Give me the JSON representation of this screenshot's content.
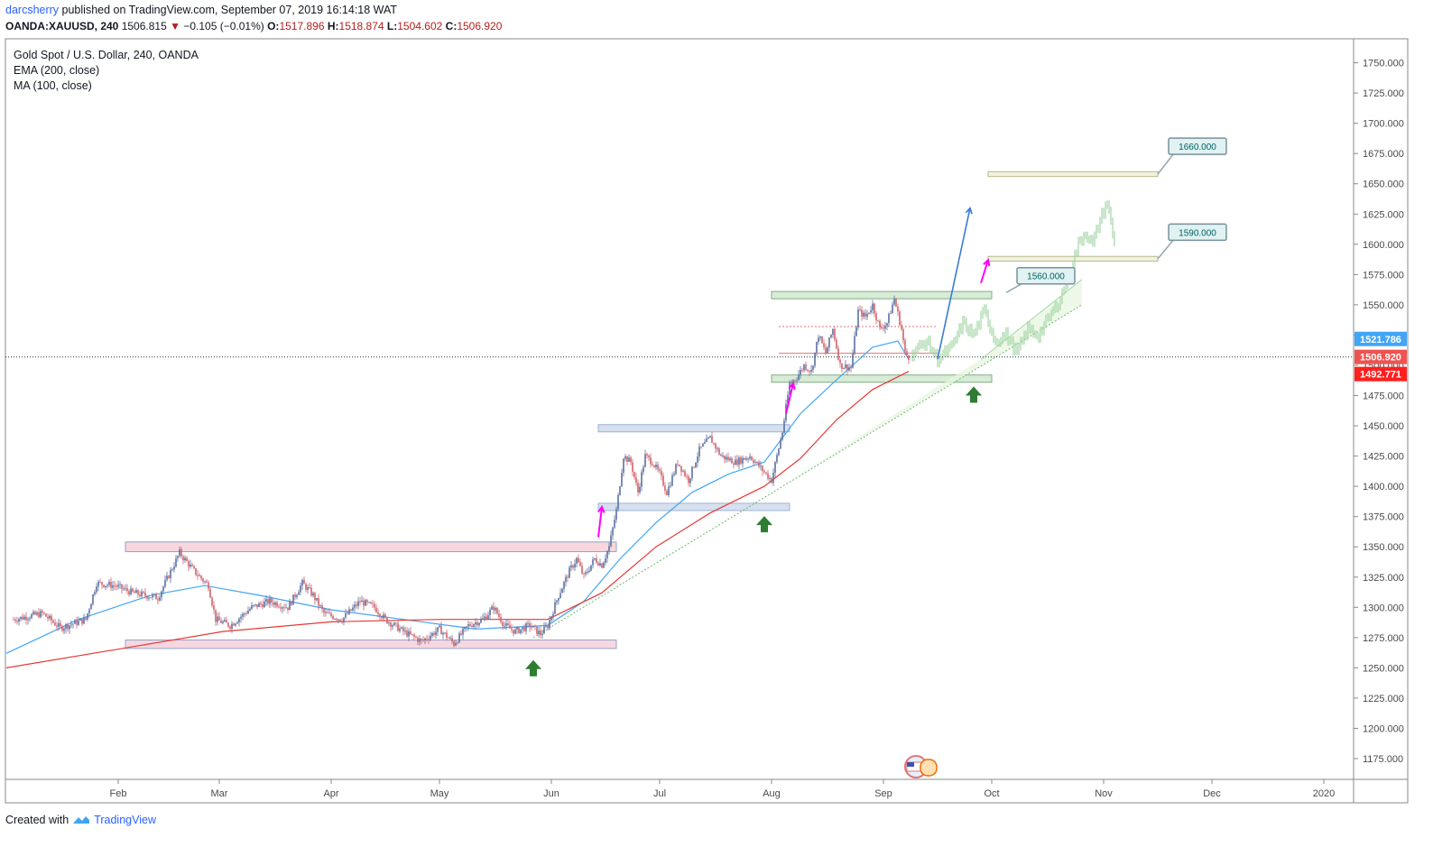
{
  "header": {
    "author": "darcsherry",
    "published": "published on TradingView.com, September 07, 2019 16:14:18 WAT",
    "symbol": "OANDA:XAUUSD, 240",
    "last": "1506.815",
    "change": "−0.105 (−0.01%)",
    "o_label": "O:",
    "o_value": "1517.896",
    "h_label": "H:",
    "h_value": "1518.874",
    "l_label": "L:",
    "l_value": "1504.602",
    "c_label": "C:",
    "c_value": "1506.920"
  },
  "legend": {
    "title": "Gold Spot / U.S. Dollar, 240, OANDA",
    "ema": "EMA (200, close)",
    "ma": "MA (100, close)"
  },
  "footer": {
    "created_with": "Created with",
    "brand": "TradingView"
  },
  "colors": {
    "candle_up": "#5b6fa0",
    "candle_down": "#d0636b",
    "ema": "#e53935",
    "ma": "#42a5f5",
    "resistance_zone": "#f8d7de",
    "mid_zone": "#d6e0ef",
    "support_zone": "#d8ebd8",
    "target_zone": "#f1f1e1",
    "projection": "#a5d6a7",
    "arrow_magenta": "#ff00ff",
    "arrow_blue": "#3a7bd5",
    "arrow_green": "#2e7d32"
  },
  "chart_data": {
    "type": "candlestick",
    "title": "Gold Spot / U.S. Dollar, 240, OANDA",
    "y_range": [
      1150,
      1765
    ],
    "y_ticks": [
      1175,
      1200,
      1225,
      1250,
      1275,
      1300,
      1325,
      1350,
      1375,
      1400,
      1425,
      1450,
      1475,
      1500,
      1525,
      1550,
      1575,
      1600,
      1625,
      1650,
      1675,
      1700,
      1725,
      1750
    ],
    "y_tick_labels": [
      "1175.000",
      "1200.000",
      "1225.000",
      "1250.000",
      "1275.000",
      "1300.000",
      "1325.000",
      "1350.000",
      "1375.000",
      "1400.000",
      "1425.000",
      "1450.000",
      "1475.000",
      "1500.000",
      "1525.000",
      "1550.000",
      "1575.000",
      "1600.000",
      "1625.000",
      "1650.000",
      "1675.000",
      "1700.000",
      "1725.000",
      "1750.000"
    ],
    "x_range_days": [
      0,
      368
    ],
    "x_ticks": [
      {
        "label": "Feb",
        "day": 31
      },
      {
        "label": "Mar",
        "day": 59
      },
      {
        "label": "Apr",
        "day": 90
      },
      {
        "label": "May",
        "day": 120
      },
      {
        "label": "Jun",
        "day": 151
      },
      {
        "label": "Jul",
        "day": 181
      },
      {
        "label": "Aug",
        "day": 212
      },
      {
        "label": "Sep",
        "day": 243
      },
      {
        "label": "Oct",
        "day": 273
      },
      {
        "label": "Nov",
        "day": 304
      },
      {
        "label": "Dec",
        "day": 334
      },
      {
        "label": "2020",
        "day": 365
      }
    ],
    "price_path": [
      [
        2,
        1290
      ],
      [
        10,
        1295
      ],
      [
        15,
        1283
      ],
      [
        22,
        1290
      ],
      [
        25,
        1320
      ],
      [
        30,
        1318
      ],
      [
        35,
        1312
      ],
      [
        42,
        1308
      ],
      [
        48,
        1345
      ],
      [
        52,
        1330
      ],
      [
        56,
        1318
      ],
      [
        58,
        1290
      ],
      [
        62,
        1285
      ],
      [
        68,
        1300
      ],
      [
        73,
        1305
      ],
      [
        78,
        1300
      ],
      [
        82,
        1320
      ],
      [
        85,
        1310
      ],
      [
        88,
        1295
      ],
      [
        93,
        1290
      ],
      [
        98,
        1305
      ],
      [
        102,
        1300
      ],
      [
        105,
        1290
      ],
      [
        110,
        1280
      ],
      [
        115,
        1272
      ],
      [
        120,
        1282
      ],
      [
        124,
        1270
      ],
      [
        128,
        1285
      ],
      [
        132,
        1290
      ],
      [
        135,
        1300
      ],
      [
        138,
        1285
      ],
      [
        141,
        1280
      ],
      [
        145,
        1285
      ],
      [
        148,
        1278
      ],
      [
        150,
        1285
      ],
      [
        153,
        1310
      ],
      [
        156,
        1330
      ],
      [
        158,
        1340
      ],
      [
        160,
        1325
      ],
      [
        163,
        1340
      ],
      [
        165,
        1335
      ],
      [
        167,
        1350
      ],
      [
        169,
        1380
      ],
      [
        171,
        1425
      ],
      [
        173,
        1420
      ],
      [
        175,
        1395
      ],
      [
        177,
        1425
      ],
      [
        179,
        1420
      ],
      [
        181,
        1410
      ],
      [
        183,
        1395
      ],
      [
        186,
        1420
      ],
      [
        189,
        1405
      ],
      [
        192,
        1430
      ],
      [
        195,
        1440
      ],
      [
        198,
        1425
      ],
      [
        202,
        1420
      ],
      [
        206,
        1425
      ],
      [
        209,
        1415
      ],
      [
        212,
        1405
      ],
      [
        215,
        1445
      ],
      [
        217,
        1485
      ],
      [
        219,
        1490
      ],
      [
        221,
        1500
      ],
      [
        223,
        1495
      ],
      [
        225,
        1525
      ],
      [
        227,
        1510
      ],
      [
        229,
        1530
      ],
      [
        231,
        1500
      ],
      [
        234,
        1498
      ],
      [
        236,
        1545
      ],
      [
        238,
        1540
      ],
      [
        240,
        1550
      ],
      [
        242,
        1530
      ],
      [
        244,
        1535
      ],
      [
        246,
        1555
      ],
      [
        248,
        1530
      ],
      [
        249,
        1510
      ],
      [
        250,
        1506.9
      ]
    ],
    "projection_path": [
      [
        251,
        1510
      ],
      [
        255,
        1520
      ],
      [
        258,
        1505
      ],
      [
        262,
        1515
      ],
      [
        265,
        1535
      ],
      [
        268,
        1525
      ],
      [
        271,
        1545
      ],
      [
        274,
        1520
      ],
      [
        277,
        1525
      ],
      [
        280,
        1510
      ],
      [
        283,
        1530
      ],
      [
        286,
        1525
      ],
      [
        289,
        1540
      ],
      [
        292,
        1555
      ],
      [
        295,
        1580
      ],
      [
        297,
        1600
      ],
      [
        299,
        1610
      ],
      [
        301,
        1600
      ],
      [
        303,
        1620
      ],
      [
        305,
        1635
      ],
      [
        307,
        1600
      ]
    ],
    "ema_200": [
      [
        0,
        1250
      ],
      [
        30,
        1265
      ],
      [
        60,
        1280
      ],
      [
        90,
        1288
      ],
      [
        120,
        1290
      ],
      [
        150,
        1290
      ],
      [
        165,
        1312
      ],
      [
        180,
        1350
      ],
      [
        195,
        1378
      ],
      [
        210,
        1400
      ],
      [
        220,
        1423
      ],
      [
        230,
        1455
      ],
      [
        240,
        1480
      ],
      [
        250,
        1495
      ]
    ],
    "ma_100": [
      [
        0,
        1262
      ],
      [
        20,
        1290
      ],
      [
        40,
        1310
      ],
      [
        55,
        1318
      ],
      [
        70,
        1310
      ],
      [
        90,
        1298
      ],
      [
        110,
        1290
      ],
      [
        130,
        1282
      ],
      [
        150,
        1285
      ],
      [
        160,
        1305
      ],
      [
        170,
        1340
      ],
      [
        180,
        1370
      ],
      [
        190,
        1395
      ],
      [
        200,
        1410
      ],
      [
        210,
        1420
      ],
      [
        220,
        1460
      ],
      [
        230,
        1488
      ],
      [
        240,
        1515
      ],
      [
        247,
        1520
      ],
      [
        250,
        1505
      ]
    ],
    "zones": [
      {
        "name": "resistance",
        "from_day": 33,
        "to_day": 169,
        "low": 1346,
        "high": 1354
      },
      {
        "name": "support",
        "from_day": 33,
        "to_day": 169,
        "low": 1266,
        "high": 1273
      },
      {
        "name": "resistance",
        "from_day": 164,
        "to_day": 217,
        "low": 1445,
        "high": 1451
      },
      {
        "name": "support",
        "from_day": 164,
        "to_day": 217,
        "low": 1380,
        "high": 1386
      },
      {
        "name": "resistance",
        "from_day": 212,
        "to_day": 273,
        "low": 1555,
        "high": 1561
      },
      {
        "name": "support",
        "from_day": 212,
        "to_day": 273,
        "low": 1486,
        "high": 1492
      },
      {
        "name": "target",
        "from_day": 272,
        "to_day": 319,
        "low": 1586,
        "high": 1590
      },
      {
        "name": "target",
        "from_day": 272,
        "to_day": 319,
        "low": 1656,
        "high": 1660
      }
    ],
    "trend_channel": {
      "lower": [
        [
          146,
          1275
        ],
        [
          298,
          1550
        ]
      ],
      "upper_start": [
        270,
        1505
      ],
      "upper_end": [
        298,
        1571
      ]
    },
    "current_price_line": 1506.92,
    "price_badges": [
      {
        "label": "1521.786",
        "price": 1521.786,
        "color": "#42a5f5"
      },
      {
        "label": "1506.920",
        "price": 1506.92,
        "color": "#ef5350"
      },
      {
        "label": "1492.771",
        "price": 1492.771,
        "color": "#ff1f1f"
      }
    ],
    "callouts": [
      {
        "label": "1660.000",
        "price": 1681,
        "anchor_day": 319,
        "anchor_price": 1658
      },
      {
        "label": "1590.000",
        "price": 1610,
        "anchor_day": 319,
        "anchor_price": 1588
      },
      {
        "label": "1560.000",
        "price": 1574,
        "anchor_day": 277,
        "anchor_price": 1560
      }
    ],
    "arrows": [
      {
        "kind": "up-green",
        "day": 146,
        "price": 1249
      },
      {
        "kind": "up-green",
        "day": 210,
        "price": 1368
      },
      {
        "kind": "up-green",
        "day": 268,
        "price": 1475
      },
      {
        "kind": "magenta",
        "from": [
          164,
          1358
        ],
        "to": [
          165,
          1383
        ]
      },
      {
        "kind": "magenta",
        "from": [
          216,
          1460
        ],
        "to": [
          218,
          1485
        ]
      },
      {
        "kind": "magenta",
        "from": [
          270,
          1568
        ],
        "to": [
          272,
          1587
        ]
      },
      {
        "kind": "blue",
        "from": [
          258,
          1505
        ],
        "to": [
          267,
          1630
        ]
      }
    ]
  }
}
